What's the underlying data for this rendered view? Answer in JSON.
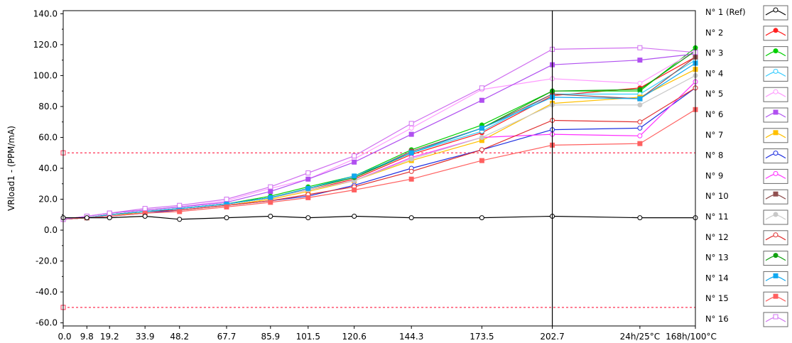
{
  "chart_data": {
    "type": "line",
    "ylabel": "VRload1 - (PPM/mA)",
    "ylim": [
      -62,
      142
    ],
    "y_ticks": [
      "140.0",
      "120.0",
      "100.0",
      "80.0",
      "60.0",
      "40.0",
      "20.0",
      "0.0",
      "-20.0",
      "-40.0",
      "-60.0"
    ],
    "y_tick_values": [
      140,
      120,
      100,
      80,
      60,
      40,
      20,
      0,
      -20,
      -40,
      -60
    ],
    "x_tick_labels": [
      "0.0",
      "9.8",
      "19.2",
      "33.9",
      "48.2",
      "67.7",
      "85.9",
      "101.5",
      "120.6",
      "144.3",
      "173.5",
      "202.7",
      "24h/25°C",
      "168h/100°C"
    ],
    "x_positions": [
      0.0,
      9.8,
      19.2,
      33.9,
      48.2,
      67.7,
      85.9,
      101.5,
      120.6,
      144.3,
      173.5,
      202.7,
      239.0,
      262.0
    ],
    "grid": false,
    "legend_position": "right",
    "limit_lines": [
      50,
      -50
    ],
    "limit_color": "#ff3355",
    "cursor_x": 202.7,
    "series": [
      {
        "name": "N° 1 (Ref)",
        "color": "#000000",
        "marker": "circle-open",
        "values": [
          8,
          8,
          8,
          9,
          7,
          8,
          9,
          8,
          9,
          8,
          8,
          9,
          8,
          8
        ]
      },
      {
        "name": "N° 2",
        "color": "#ff2020",
        "marker": "circle-filled",
        "values": [
          7,
          8,
          10,
          12,
          14,
          17,
          21,
          26,
          33,
          49,
          63,
          87,
          92,
          112
        ]
      },
      {
        "name": "N° 3",
        "color": "#00d000",
        "marker": "circle-filled",
        "values": [
          7,
          8,
          10,
          12,
          14,
          17,
          22,
          28,
          35,
          52,
          68,
          90,
          90,
          118
        ]
      },
      {
        "name": "N° 4",
        "color": "#33ccff",
        "marker": "circle-open",
        "values": [
          7,
          8,
          10,
          12,
          14,
          17,
          21,
          27,
          34,
          50,
          64,
          88,
          88,
          110
        ]
      },
      {
        "name": "N° 5",
        "color": "#ff99ff",
        "marker": "circle-open",
        "values": [
          7,
          9,
          11,
          13,
          15,
          19,
          27,
          33,
          46,
          66,
          91,
          98,
          95,
          116
        ]
      },
      {
        "name": "N° 6",
        "color": "#b050f0",
        "marker": "square-filled",
        "values": [
          7,
          9,
          11,
          13,
          15,
          18,
          25,
          33,
          44,
          62,
          84,
          107,
          110,
          114
        ]
      },
      {
        "name": "N° 7",
        "color": "#ffc000",
        "marker": "square-filled",
        "values": [
          7,
          8,
          10,
          11,
          13,
          16,
          20,
          25,
          32,
          45,
          58,
          82,
          86,
          104
        ]
      },
      {
        "name": "N° 8",
        "color": "#2030e0",
        "marker": "circle-open",
        "values": [
          7,
          8,
          9,
          11,
          13,
          16,
          19,
          22,
          29,
          40,
          52,
          65,
          66,
          92
        ]
      },
      {
        "name": "N° 9",
        "color": "#ff30ff",
        "marker": "circle-open",
        "values": [
          7,
          8,
          10,
          12,
          14,
          17,
          21,
          26,
          32,
          47,
          60,
          62,
          61,
          96
        ]
      },
      {
        "name": "N° 10",
        "color": "#905050",
        "marker": "square-filled",
        "values": [
          7,
          8,
          10,
          12,
          14,
          17,
          21,
          27,
          34,
          51,
          66,
          88,
          85,
          112
        ]
      },
      {
        "name": "N° 11",
        "color": "#c8c8c8",
        "marker": "circle-filled",
        "values": [
          7,
          8,
          10,
          12,
          14,
          17,
          21,
          26,
          32,
          46,
          60,
          81,
          81,
          100
        ]
      },
      {
        "name": "N° 12",
        "color": "#e03030",
        "marker": "circle-open",
        "values": [
          7,
          8,
          10,
          12,
          13,
          16,
          19,
          23,
          28,
          38,
          52,
          71,
          70,
          92
        ]
      },
      {
        "name": "N° 13",
        "color": "#10a010",
        "marker": "circle-filled",
        "values": [
          7,
          8,
          10,
          12,
          14,
          17,
          21,
          27,
          34,
          50,
          66,
          90,
          91,
          116
        ]
      },
      {
        "name": "N° 14",
        "color": "#10a8f0",
        "marker": "square-filled",
        "values": [
          7,
          8,
          10,
          12,
          14,
          17,
          21,
          27,
          35,
          50,
          66,
          86,
          85,
          108
        ]
      },
      {
        "name": "N° 15",
        "color": "#ff6060",
        "marker": "square-filled",
        "values": [
          7,
          8,
          9,
          11,
          12,
          15,
          18,
          21,
          26,
          33,
          45,
          55,
          56,
          78
        ]
      },
      {
        "name": "N° 16",
        "color": "#d070f0",
        "marker": "square-open",
        "values": [
          7,
          9,
          11,
          14,
          16,
          20,
          28,
          37,
          48,
          69,
          92,
          117,
          118,
          115
        ]
      }
    ]
  }
}
